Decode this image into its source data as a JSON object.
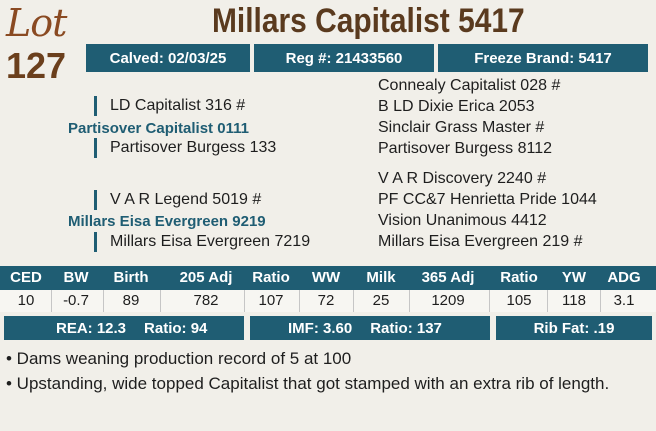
{
  "lot": {
    "word": "Lot",
    "number": "127"
  },
  "title": "Millars Capitalist 5417",
  "info": {
    "calved": "Calved: 02/03/25",
    "reg": "Reg #: 21433560",
    "freeze": "Freeze Brand: 5417"
  },
  "pedigree": {
    "sire": "Partisover Capitalist 0111",
    "sire_sire": "LD Capitalist 316 #",
    "sire_dam": "Partisover Burgess 133",
    "sss": "Connealy Capitalist 028 #",
    "ssd": "B LD Dixie Erica 2053",
    "sds": "Sinclair Grass Master #",
    "sdd": "Partisover Burgess 8112",
    "dam": "Millars Eisa Evergreen 9219",
    "dam_sire": "V A R Legend 5019 #",
    "dam_dam": "Millars Eisa Evergreen 7219",
    "dss": "V A R Discovery 2240 #",
    "dsd": "PF CC&7 Henrietta Pride 1044",
    "dds": "Vision Unanimous 4412",
    "ddd": "Millars Eisa Evergreen 219 #"
  },
  "epd": {
    "headers": [
      "CED",
      "BW",
      "Birth",
      "205 Adj",
      "Ratio",
      "WW",
      "Milk",
      "365 Adj",
      "Ratio",
      "YW",
      "ADG"
    ],
    "values": [
      "10",
      "-0.7",
      "89",
      "782",
      "107",
      "72",
      "25",
      "1209",
      "105",
      "118",
      "3.1"
    ]
  },
  "carcass": {
    "rea": "REA: 12.3",
    "rea_ratio": "Ratio: 94",
    "imf": "IMF: 3.60",
    "imf_ratio": "Ratio: 137",
    "rib_fat": "Rib Fat: .19"
  },
  "notes": [
    "• Dams weaning production record of 5 at 100",
    "• Upstanding, wide topped Capitalist that got stamped with an extra rib of length."
  ]
}
